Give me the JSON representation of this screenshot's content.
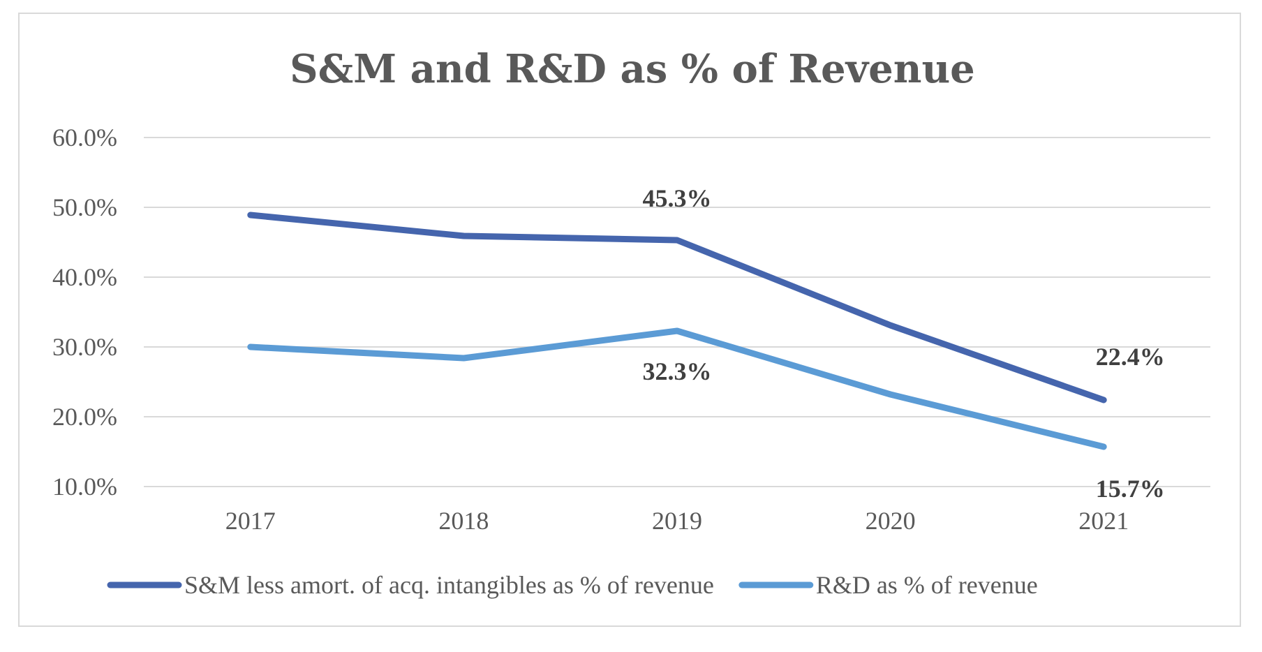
{
  "chart_data": {
    "type": "line",
    "title": "S&M and R&D as % of Revenue",
    "categories": [
      "2017",
      "2018",
      "2019",
      "2020",
      "2021"
    ],
    "ylim": [
      10,
      60
    ],
    "yticks": [
      "60.0%",
      "50.0%",
      "40.0%",
      "30.0%",
      "20.0%",
      "10.0%"
    ],
    "grid": true,
    "legend_position": "bottom",
    "series": [
      {
        "name": "S&M less amort. of acq. intangibles as % of revenue",
        "color": "#4565AD",
        "values": [
          48.9,
          45.9,
          45.3,
          33.1,
          22.4
        ],
        "labels": [
          "",
          "",
          "45.3%",
          "",
          "22.4%"
        ]
      },
      {
        "name": "R&D as % of revenue",
        "color": "#5B9BD5",
        "values": [
          30.0,
          28.4,
          32.3,
          23.2,
          15.7
        ],
        "labels": [
          "",
          "",
          "32.3%",
          "",
          "15.7%"
        ]
      }
    ]
  }
}
